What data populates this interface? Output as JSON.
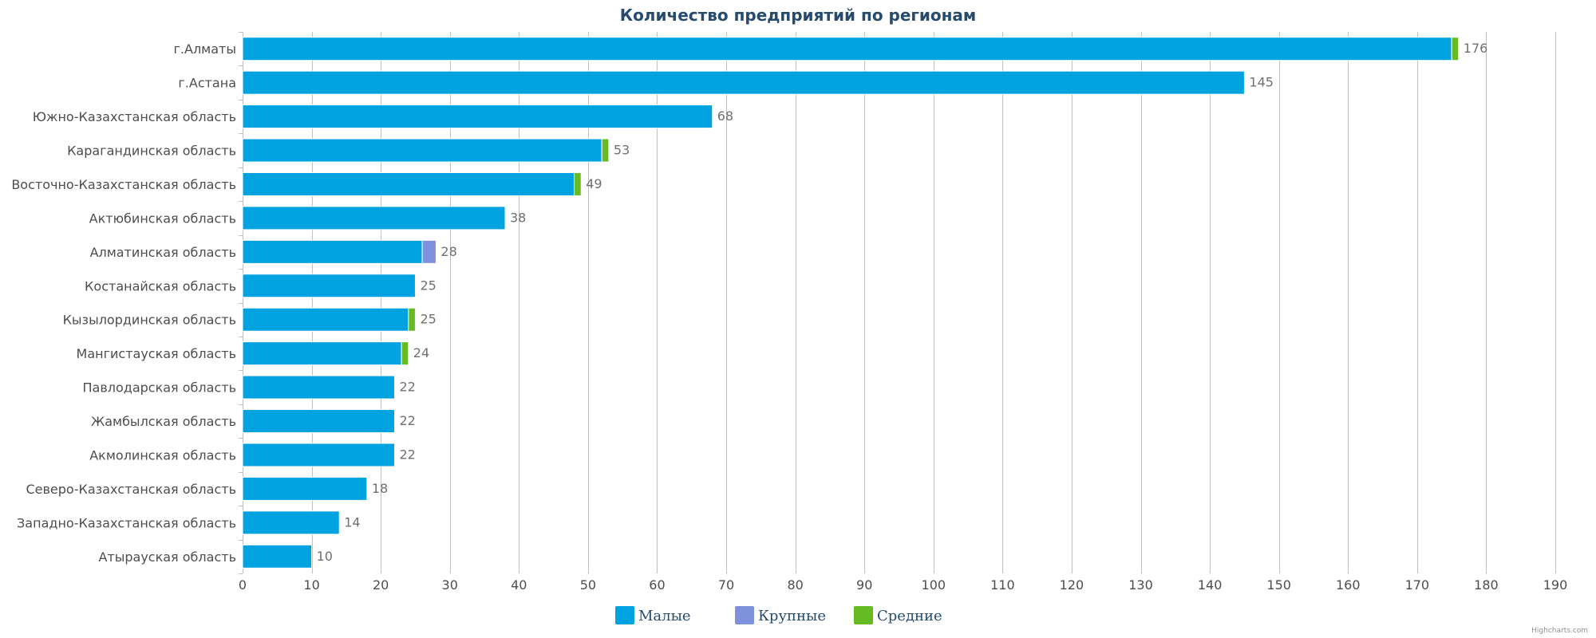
{
  "chart_data": {
    "type": "bar",
    "orientation": "horizontal",
    "stacked": true,
    "title": "Количество предприятий по регионам",
    "categories": [
      "г.Алматы",
      "г.Астана",
      "Южно-Казахстанская область",
      "Карагандинская область",
      "Восточно-Казахстанская область",
      "Актюбинская область",
      "Алматинская область",
      "Костанайская область",
      "Кызылординская область",
      "Мангистауская область",
      "Павлодарская область",
      "Жамбылская область",
      "Акмолинская область",
      "Северо-Казахстанская область",
      "Западно-Казахстанская область",
      "Атырауская область"
    ],
    "series": [
      {
        "name": "Малые",
        "color": "#00A2E0",
        "values": [
          175,
          145,
          68,
          52,
          48,
          38,
          26,
          25,
          24,
          23,
          22,
          22,
          22,
          18,
          14,
          10
        ]
      },
      {
        "name": "Крупные",
        "color": "#7F91DD",
        "values": [
          0,
          0,
          0,
          0,
          0,
          0,
          2,
          0,
          0,
          0,
          0,
          0,
          0,
          0,
          0,
          0
        ]
      },
      {
        "name": "Средние",
        "color": "#66BB22",
        "values": [
          1,
          0,
          0,
          1,
          1,
          0,
          0,
          0,
          1,
          1,
          0,
          0,
          0,
          0,
          0,
          0
        ]
      }
    ],
    "totals": [
      176,
      145,
      68,
      53,
      49,
      38,
      28,
      25,
      25,
      24,
      22,
      22,
      22,
      18,
      14,
      10
    ],
    "xlim": [
      0,
      190
    ],
    "xticks": [
      0,
      10,
      20,
      30,
      40,
      50,
      60,
      70,
      80,
      90,
      100,
      110,
      120,
      130,
      140,
      150,
      160,
      170,
      180,
      190
    ],
    "grid": true,
    "legend_position": "bottom-center"
  },
  "credits": "Highcharts.com",
  "colors": {
    "title": "#274B6D",
    "axis_labels": "#4D4D4D",
    "data_labels": "#707070",
    "grid": "#C0C0C0",
    "legend_text": "#274B6D",
    "credits": "#909090"
  }
}
